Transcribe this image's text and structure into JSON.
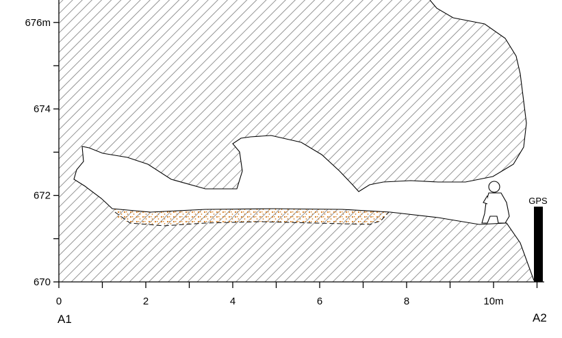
{
  "figure": {
    "x_axis": {
      "ticks": [
        {
          "value": 0,
          "label": "0"
        },
        {
          "value": 2,
          "label": "2"
        },
        {
          "value": 4,
          "label": "4"
        },
        {
          "value": 6,
          "label": "6"
        },
        {
          "value": 8,
          "label": "8"
        },
        {
          "value": 10,
          "label": "10m"
        }
      ],
      "minor_ticks": [
        1,
        3,
        5,
        7,
        9,
        11
      ],
      "range": [
        0,
        11.2
      ]
    },
    "y_axis": {
      "ticks": [
        {
          "value": 670,
          "label": "670"
        },
        {
          "value": 672,
          "label": "672"
        },
        {
          "value": 674,
          "label": "674"
        },
        {
          "value": 676,
          "label": "676m"
        }
      ],
      "minor_ticks": [
        671,
        673,
        675
      ],
      "range": [
        670,
        676.5
      ]
    },
    "section_labels": {
      "left": "A1",
      "right": "A2"
    },
    "gps_marker": {
      "label": "GPS",
      "color": "#000000"
    },
    "colors": {
      "rock_hatch": "#888888",
      "sediment_dots": "#d67a1a",
      "outline": "#000000"
    }
  }
}
